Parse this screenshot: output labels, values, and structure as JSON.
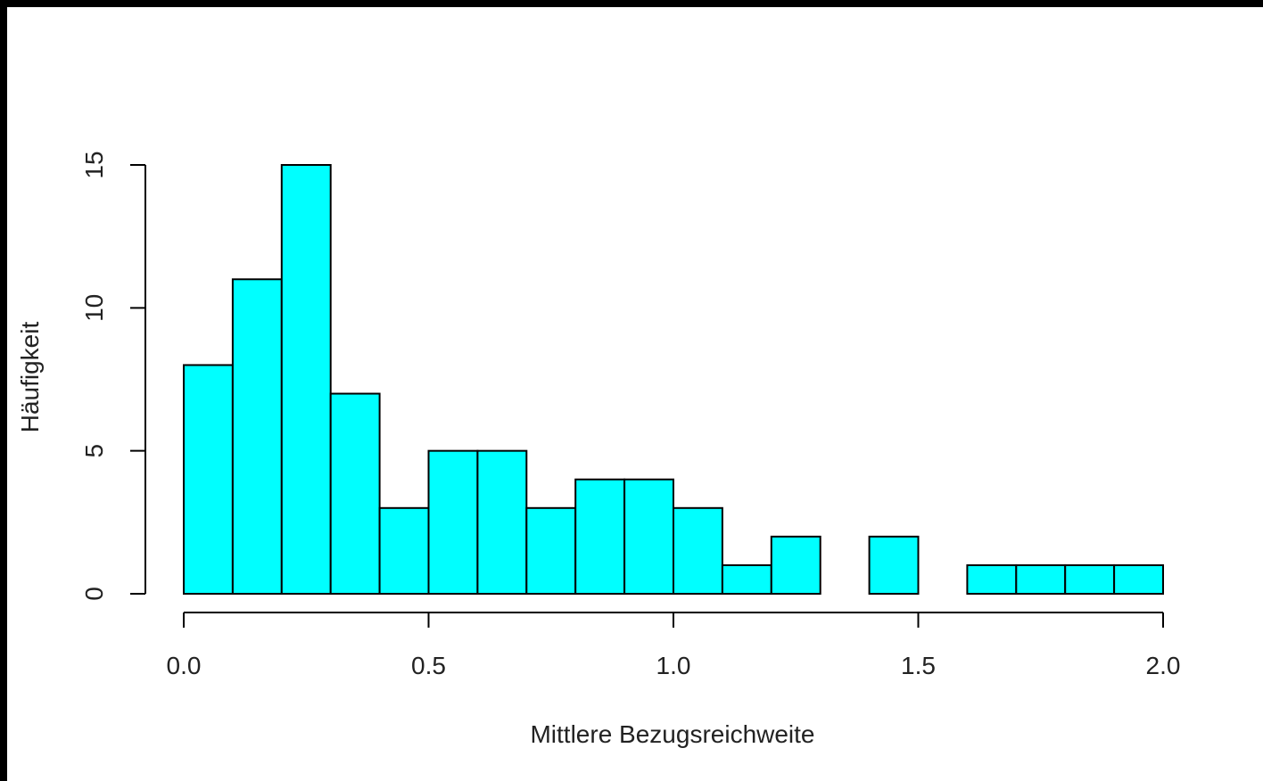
{
  "chart_data": {
    "type": "bar",
    "histogram": true,
    "title": "",
    "xlabel": "Mittlere Bezugsreichweite",
    "ylabel": "Häufigkeit",
    "bin_edges": [
      0.0,
      0.1,
      0.2,
      0.3,
      0.4,
      0.5,
      0.6,
      0.7,
      0.8,
      0.9,
      1.0,
      1.1,
      1.2,
      1.3,
      1.4,
      1.5,
      1.6,
      1.7,
      1.8,
      1.9,
      2.0
    ],
    "values": [
      8,
      11,
      15,
      7,
      3,
      5,
      5,
      3,
      4,
      4,
      3,
      1,
      2,
      0,
      2,
      0,
      1,
      1,
      1,
      1
    ],
    "xlim": [
      0.0,
      2.0
    ],
    "ylim": [
      0,
      15
    ],
    "x_ticks": [
      {
        "value": 0.0,
        "label": "0.0"
      },
      {
        "value": 0.5,
        "label": "0.5"
      },
      {
        "value": 1.0,
        "label": "1.0"
      },
      {
        "value": 1.5,
        "label": "1.5"
      },
      {
        "value": 2.0,
        "label": "2.0"
      }
    ],
    "y_ticks": [
      {
        "value": 0,
        "label": "0"
      },
      {
        "value": 5,
        "label": "5"
      },
      {
        "value": 10,
        "label": "10"
      },
      {
        "value": 15,
        "label": "15"
      }
    ],
    "grid": false,
    "bar_color": "#00ffff",
    "edge_color": "#000000",
    "frame_color": "#000000",
    "page_background": "#ffffff"
  }
}
